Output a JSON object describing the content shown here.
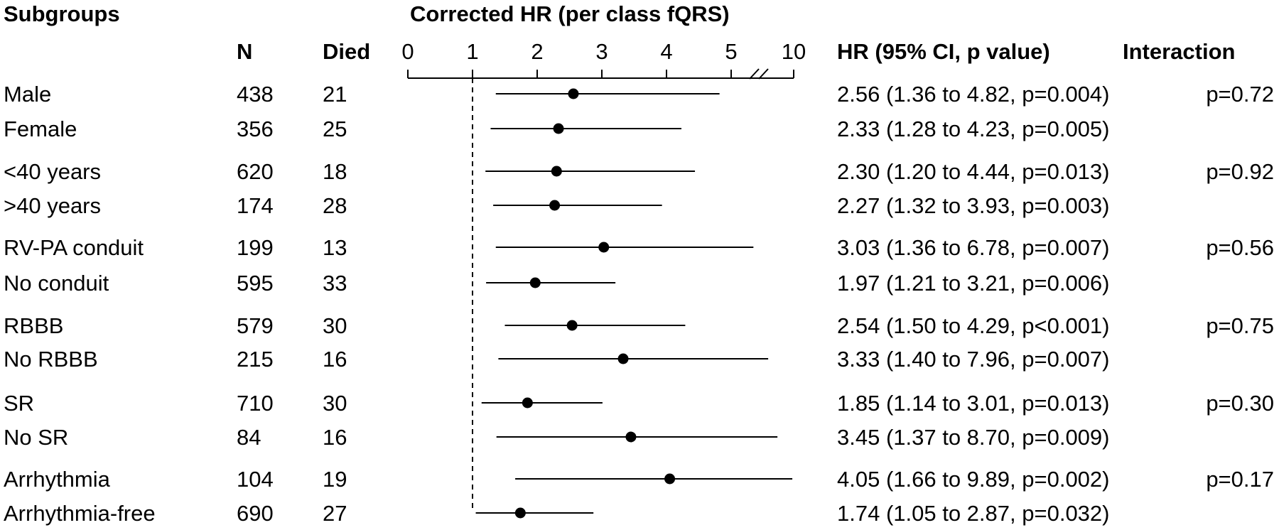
{
  "headers": {
    "subgroups": "Subgroups",
    "n": "N",
    "died": "Died",
    "title": "Corrected HR (per class fQRS)",
    "hr": "HR (95% CI, p value)",
    "interaction": "Interaction"
  },
  "chart_data": {
    "type": "forest",
    "title": "Corrected HR (per class fQRS)",
    "reference_line": 1,
    "axis": {
      "ticks": [
        "0",
        "1",
        "2",
        "3",
        "4",
        "5",
        "10"
      ],
      "break_between": [
        "5",
        "10"
      ]
    },
    "rows": [
      {
        "label": "Male",
        "n": "438",
        "died": "21",
        "hr": 2.56,
        "lo": 1.36,
        "hi": 4.82,
        "text": "2.56 (1.36 to 4.82, p=0.004)",
        "interaction": "p=0.72"
      },
      {
        "label": "Female",
        "n": "356",
        "died": "25",
        "hr": 2.33,
        "lo": 1.28,
        "hi": 4.23,
        "text": "2.33 (1.28 to 4.23, p=0.005)",
        "interaction": ""
      },
      {
        "label": "<40 years",
        "n": "620",
        "died": "18",
        "hr": 2.3,
        "lo": 1.2,
        "hi": 4.44,
        "text": "2.30 (1.20 to 4.44, p=0.013)",
        "interaction": "p=0.92"
      },
      {
        "label": ">40 years",
        "n": "174",
        "died": "28",
        "hr": 2.27,
        "lo": 1.32,
        "hi": 3.93,
        "text": "2.27 (1.32 to 3.93, p=0.003)",
        "interaction": ""
      },
      {
        "label": "RV-PA conduit",
        "n": "199",
        "died": "13",
        "hr": 3.03,
        "lo": 1.36,
        "hi": 6.78,
        "text": "3.03 (1.36 to 6.78, p=0.007)",
        "interaction": "p=0.56"
      },
      {
        "label": "No conduit",
        "n": "595",
        "died": "33",
        "hr": 1.97,
        "lo": 1.21,
        "hi": 3.21,
        "text": "1.97 (1.21 to 3.21, p=0.006)",
        "interaction": ""
      },
      {
        "label": "RBBB",
        "n": "579",
        "died": "30",
        "hr": 2.54,
        "lo": 1.5,
        "hi": 4.29,
        "text": "2.54 (1.50 to 4.29, p<0.001)",
        "interaction": "p=0.75"
      },
      {
        "label": "No RBBB",
        "n": "215",
        "died": "16",
        "hr": 3.33,
        "lo": 1.4,
        "hi": 7.96,
        "text": "3.33 (1.40 to 7.96, p=0.007)",
        "interaction": ""
      },
      {
        "label": "SR",
        "n": "710",
        "died": "30",
        "hr": 1.85,
        "lo": 1.14,
        "hi": 3.01,
        "text": "1.85 (1.14 to 3.01, p=0.013)",
        "interaction": "p=0.30"
      },
      {
        "label": "No SR",
        "n": "84",
        "died": "16",
        "hr": 3.45,
        "lo": 1.37,
        "hi": 8.7,
        "text": "3.45 (1.37 to 8.70, p=0.009)",
        "interaction": ""
      },
      {
        "label": "Arrhythmia",
        "n": "104",
        "died": "19",
        "hr": 4.05,
        "lo": 1.66,
        "hi": 9.89,
        "text": "4.05 (1.66 to 9.89, p=0.002)",
        "interaction": "p=0.17"
      },
      {
        "label": "Arrhythmia-free",
        "n": "690",
        "died": "27",
        "hr": 1.74,
        "lo": 1.05,
        "hi": 2.87,
        "text": "1.74 (1.05 to 2.87, p=0.032)",
        "interaction": ""
      }
    ]
  }
}
